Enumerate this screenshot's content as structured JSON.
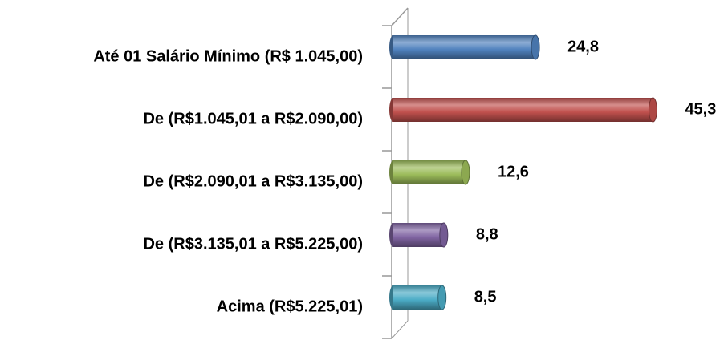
{
  "chart_data": {
    "type": "bar",
    "orientation": "horizontal",
    "categories": [
      "Até 01 Salário Mínimo (R$ 1.045,00)",
      "De (R$1.045,01 a R$2.090,00)",
      "De (R$2.090,01 a R$3.135,00)",
      "De (R$3.135,01 a R$5.225,00)",
      "Acima (R$5.225,01)"
    ],
    "values": [
      24.8,
      45.3,
      12.6,
      8.8,
      8.5
    ],
    "value_labels": [
      "24,8",
      "45,3",
      "12,6",
      "8,8",
      "8,5"
    ],
    "colors": [
      "#4f81bd",
      "#c0504d",
      "#9bbb59",
      "#8064a2",
      "#4bacc6"
    ],
    "xlim": [
      0,
      50
    ]
  }
}
